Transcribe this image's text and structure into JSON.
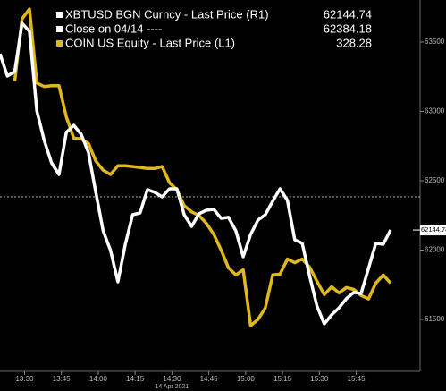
{
  "chart_data": {
    "type": "line",
    "x": [
      "13:20",
      "13:23",
      "13:26",
      "13:29",
      "13:32",
      "13:35",
      "13:38",
      "13:41",
      "13:44",
      "13:47",
      "13:50",
      "13:53",
      "13:56",
      "13:59",
      "14:02",
      "14:05",
      "14:08",
      "14:11",
      "14:14",
      "14:17",
      "14:20",
      "14:23",
      "14:26",
      "14:29",
      "14:32",
      "14:35",
      "14:38",
      "14:41",
      "14:44",
      "14:47",
      "14:50",
      "14:53",
      "14:56",
      "14:59",
      "15:02",
      "15:05",
      "15:08",
      "15:11",
      "15:14",
      "15:17",
      "15:20",
      "15:23",
      "15:26",
      "15:29",
      "15:32",
      "15:35",
      "15:38",
      "15:41",
      "15:44",
      "15:47",
      "15:50",
      "15:53",
      "15:56",
      "15:59"
    ],
    "xlim": [
      "13:20",
      "16:11"
    ],
    "xticks": [
      "13:30",
      "13:45",
      "14:00",
      "14:15",
      "14:30",
      "14:45",
      "15:00",
      "15:15",
      "15:30",
      "15:45"
    ],
    "x_sublabel": "14 Apr 2021",
    "ylim": [
      296,
      432
    ],
    "y2lim": [
      61126,
      63803
    ],
    "y2ticks": [
      61500,
      62000,
      62500,
      63000,
      63500
    ],
    "series": [
      {
        "name": "XBTUSD BGN Curncy - Last Price (R1)",
        "color": "#ffffff",
        "axis": "y2",
        "last": 62144.74,
        "values": [
          63416,
          63255,
          63287,
          63635,
          63577,
          63003,
          62790,
          62629,
          62545,
          62848,
          62900,
          62836,
          62706,
          62416,
          62139,
          61997,
          61771,
          62042,
          62255,
          62268,
          62436,
          62416,
          62384,
          62442,
          62442,
          62255,
          62171,
          62262,
          62287,
          62294,
          62229,
          62236,
          62139,
          61952,
          62113,
          62216,
          62255,
          62352,
          62442,
          62358,
          62074,
          62049,
          61816,
          61597,
          61468,
          61533,
          61584,
          61649,
          61694,
          61687,
          61868,
          62049,
          62042,
          62144.74
        ]
      },
      {
        "name": "COIN US Equity - Last Price (L1)",
        "color": "#e0b81c",
        "axis": "y",
        "last": 328.28,
        "values": [
          null,
          null,
          402.3,
          425.1,
          428.7,
          401.6,
          400.3,
          400.6,
          400.6,
          389.2,
          381.4,
          381.1,
          379.5,
          373.0,
          369.7,
          368.1,
          371.3,
          371.3,
          371.0,
          370.7,
          370.3,
          370.3,
          371.0,
          365.1,
          362.5,
          356.7,
          354.4,
          353.1,
          350.2,
          346.2,
          340.4,
          333.9,
          331.3,
          333.2,
          312.7,
          315.0,
          319.2,
          331.3,
          331.6,
          337.1,
          335.8,
          337.1,
          334.2,
          329.0,
          324.1,
          327.0,
          324.7,
          326.7,
          326.0,
          323.8,
          322.5,
          328.3,
          331.3,
          328.28
        ]
      }
    ],
    "reference_line": {
      "name": "Close on 04/14 ----",
      "value": 62384.18,
      "axis": "y2"
    }
  }
}
